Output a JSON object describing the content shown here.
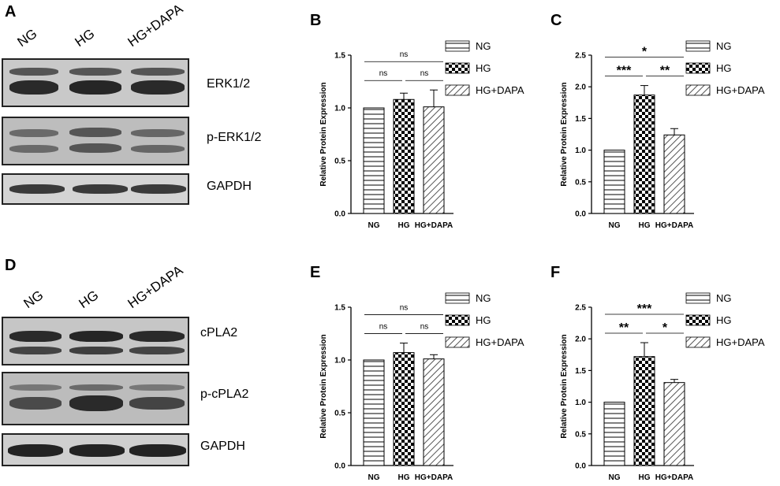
{
  "panels": {
    "A": {
      "letter": "A",
      "lanes": [
        "NG",
        "HG",
        "HG+DAPA"
      ],
      "blots": [
        {
          "label": "ERK1/2"
        },
        {
          "label": "p-ERK1/2"
        },
        {
          "label": "GAPDH"
        }
      ]
    },
    "D": {
      "letter": "D",
      "lanes": [
        "NG",
        "HG",
        "HG+DAPA"
      ],
      "blots": [
        {
          "label": "cPLA2"
        },
        {
          "label": "p-cPLA2"
        },
        {
          "label": "GAPDH"
        }
      ]
    }
  },
  "chart_data": [
    {
      "letter": "B",
      "type": "bar",
      "categories": [
        "NG",
        "HG",
        "HG+DAPA"
      ],
      "values": [
        1.0,
        1.08,
        1.01
      ],
      "errors": [
        0,
        0.06,
        0.16
      ],
      "ylabel": "Relative Protein Expression",
      "ylim": [
        0,
        1.5
      ],
      "yticks": [
        "0.0",
        "0.5",
        "1.0",
        "1.5"
      ],
      "legend": [
        "NG",
        "HG",
        "HG+DAPA"
      ],
      "legend_position": "right",
      "grid": false,
      "significance": [
        {
          "from": 0,
          "to": 1,
          "label": "ns",
          "level": 0
        },
        {
          "from": 1,
          "to": 2,
          "label": "ns",
          "level": 0
        },
        {
          "from": 0,
          "to": 2,
          "label": "ns",
          "level": 1
        }
      ]
    },
    {
      "letter": "C",
      "type": "bar",
      "categories": [
        "NG",
        "HG",
        "HG+DAPA"
      ],
      "values": [
        1.0,
        1.87,
        1.24
      ],
      "errors": [
        0,
        0.15,
        0.1
      ],
      "ylabel": "Relative Protein Expression",
      "ylim": [
        0,
        2.5
      ],
      "yticks": [
        "0.0",
        "0.5",
        "1.0",
        "1.5",
        "2.0",
        "2.5"
      ],
      "legend": [
        "NG",
        "HG",
        "HG+DAPA"
      ],
      "legend_position": "right",
      "grid": false,
      "significance": [
        {
          "from": 0,
          "to": 1,
          "label": "***",
          "level": 0
        },
        {
          "from": 1,
          "to": 2,
          "label": "**",
          "level": 0
        },
        {
          "from": 0,
          "to": 2,
          "label": "*",
          "level": 1
        }
      ]
    },
    {
      "letter": "E",
      "type": "bar",
      "categories": [
        "NG",
        "HG",
        "HG+DAPA"
      ],
      "values": [
        1.0,
        1.07,
        1.01
      ],
      "errors": [
        0,
        0.09,
        0.04
      ],
      "ylabel": "Relative Protein Expression",
      "ylim": [
        0,
        1.5
      ],
      "yticks": [
        "0.0",
        "0.5",
        "1.0",
        "1.5"
      ],
      "legend": [
        "NG",
        "HG",
        "HG+DAPA"
      ],
      "legend_position": "right",
      "grid": false,
      "significance": [
        {
          "from": 0,
          "to": 1,
          "label": "ns",
          "level": 0
        },
        {
          "from": 1,
          "to": 2,
          "label": "ns",
          "level": 0
        },
        {
          "from": 0,
          "to": 2,
          "label": "ns",
          "level": 1
        }
      ]
    },
    {
      "letter": "F",
      "type": "bar",
      "categories": [
        "NG",
        "HG",
        "HG+DAPA"
      ],
      "values": [
        1.0,
        1.72,
        1.31
      ],
      "errors": [
        0,
        0.22,
        0.05
      ],
      "ylabel": "Relative Protein Expression",
      "ylim": [
        0,
        2.5
      ],
      "yticks": [
        "0.0",
        "0.5",
        "1.0",
        "1.5",
        "2.0",
        "2.5"
      ],
      "legend": [
        "NG",
        "HG",
        "HG+DAPA"
      ],
      "legend_position": "right",
      "grid": false,
      "significance": [
        {
          "from": 0,
          "to": 1,
          "label": "**",
          "level": 0
        },
        {
          "from": 1,
          "to": 2,
          "label": "*",
          "level": 0
        },
        {
          "from": 0,
          "to": 2,
          "label": "***",
          "level": 1
        }
      ]
    }
  ]
}
